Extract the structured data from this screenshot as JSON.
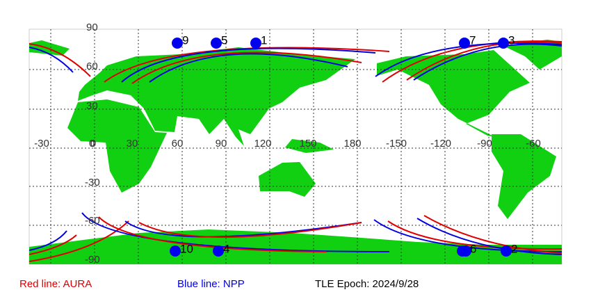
{
  "map": {
    "lat_labels": [
      "90",
      "60",
      "30",
      "0",
      "-30",
      "-60",
      "-90"
    ],
    "lon_labels": [
      "-30",
      "0",
      "30",
      "60",
      "90",
      "120",
      "150",
      "180",
      "-150",
      "-120",
      "-90",
      "-60"
    ],
    "points": [
      "9",
      "5",
      "1",
      "7",
      "3",
      "10",
      "4",
      "6",
      "2"
    ],
    "legend": [
      "Red line: AURA",
      "Blue line: NPP",
      "TLE Epoch: 2024/9/28"
    ]
  }
}
